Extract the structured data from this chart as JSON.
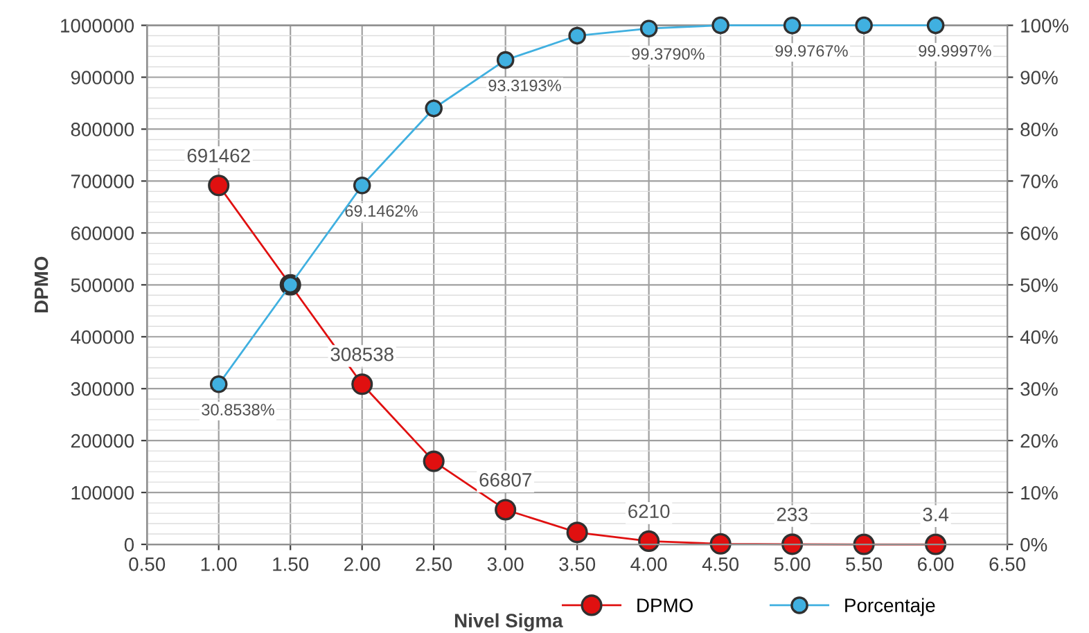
{
  "chart_data": {
    "type": "line",
    "xlabel": "Nivel Sigma",
    "ylabel": "DPMO",
    "x": [
      1.0,
      1.5,
      2.0,
      2.5,
      3.0,
      3.5,
      4.0,
      4.5,
      5.0,
      5.5,
      6.0
    ],
    "series": [
      {
        "name": "DPMO",
        "color": "#e01010",
        "values": [
          691462,
          500000,
          308538,
          160000,
          66807,
          23000,
          6210,
          1000,
          233,
          0,
          3.4
        ],
        "value_labels": [
          "691462",
          null,
          "308538",
          null,
          "66807",
          null,
          "6210",
          null,
          "233",
          null,
          "3.4"
        ]
      },
      {
        "name": "Porcentaje",
        "color": "#40b0e0",
        "axis": "y2",
        "values": [
          30.8538,
          50,
          69.1462,
          84,
          93.3193,
          98,
          99.379,
          100,
          99.9767,
          100,
          99.9997
        ],
        "value_labels": [
          "30.8538%",
          null,
          "69.1462%",
          null,
          "93.3193%",
          null,
          "99.3790%",
          null,
          "99.9767%",
          null,
          "99.9997%"
        ]
      }
    ],
    "xlim": [
      0.5,
      6.5
    ],
    "xticks": [
      {
        "value": 0.5,
        "label": "0.50"
      },
      {
        "value": 1.0,
        "label": "1.00"
      },
      {
        "value": 1.5,
        "label": "1.50"
      },
      {
        "value": 2.0,
        "label": "2.00"
      },
      {
        "value": 2.5,
        "label": "2.50"
      },
      {
        "value": 3.0,
        "label": "3.00"
      },
      {
        "value": 3.5,
        "label": "3.50"
      },
      {
        "value": 4.0,
        "label": "4.00"
      },
      {
        "value": 4.5,
        "label": "4.50"
      },
      {
        "value": 5.0,
        "label": "5.00"
      },
      {
        "value": 5.5,
        "label": "5.50"
      },
      {
        "value": 6.0,
        "label": "6.00"
      },
      {
        "value": 6.5,
        "label": "6.50"
      }
    ],
    "ylim": [
      0,
      1000000
    ],
    "yticks": [
      0,
      100000,
      200000,
      300000,
      400000,
      500000,
      600000,
      700000,
      800000,
      900000,
      1000000
    ],
    "y2lim": [
      0,
      100
    ],
    "y2ticks": [
      {
        "value": 0,
        "label": "0%"
      },
      {
        "value": 10,
        "label": "10%"
      },
      {
        "value": 20,
        "label": "20%"
      },
      {
        "value": 30,
        "label": "30%"
      },
      {
        "value": 40,
        "label": "40%"
      },
      {
        "value": 50,
        "label": "50%"
      },
      {
        "value": 60,
        "label": "60%"
      },
      {
        "value": 70,
        "label": "70%"
      },
      {
        "value": 80,
        "label": "80%"
      },
      {
        "value": 90,
        "label": "90%"
      },
      {
        "value": 100,
        "label": "100%"
      }
    ],
    "grid": true,
    "legend": "bottom",
    "marker": "circle",
    "line_style": "solid"
  }
}
